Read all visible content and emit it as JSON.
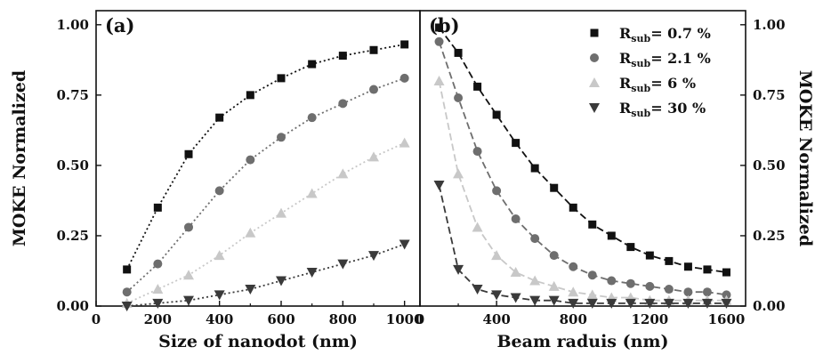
{
  "chart_data": [
    {
      "type": "line",
      "panel_label": "(a)",
      "xlabel": "Size of nanodot (nm)",
      "ylabel": "MOKE Normalized",
      "xlim": [
        0,
        1050
      ],
      "ylim": [
        0,
        1.05
      ],
      "xticks": [
        0,
        200,
        400,
        600,
        800,
        1000
      ],
      "yticks": [
        0.0,
        0.25,
        0.5,
        0.75,
        1.0
      ],
      "ytick_labels": [
        "0.00",
        "0.25",
        "0.50",
        "0.75",
        "1.00"
      ],
      "ytick_side": "left",
      "line_style": "dotted",
      "x": [
        100,
        200,
        300,
        400,
        500,
        600,
        700,
        800,
        900,
        1000
      ],
      "series": [
        {
          "marker": "square",
          "color": "#111111",
          "values": [
            0.13,
            0.35,
            0.54,
            0.67,
            0.75,
            0.81,
            0.86,
            0.89,
            0.91,
            0.93
          ]
        },
        {
          "marker": "circle",
          "color": "#6e6e6e",
          "values": [
            0.05,
            0.15,
            0.28,
            0.41,
            0.52,
            0.6,
            0.67,
            0.72,
            0.77,
            0.81
          ]
        },
        {
          "marker": "triangle-up",
          "color": "#c8c8c8",
          "values": [
            0.01,
            0.06,
            0.11,
            0.18,
            0.26,
            0.33,
            0.4,
            0.47,
            0.53,
            0.58
          ]
        },
        {
          "marker": "triangle-down",
          "color": "#3a3a3a",
          "values": [
            0.0,
            0.01,
            0.02,
            0.04,
            0.06,
            0.09,
            0.12,
            0.15,
            0.18,
            0.22
          ]
        }
      ]
    },
    {
      "type": "line",
      "panel_label": "(b)",
      "xlabel": "Beam raduis (nm)",
      "ylabel": "MOKE Normalized",
      "xlim": [
        0,
        1700
      ],
      "ylim": [
        0,
        1.05
      ],
      "xticks": [
        0,
        400,
        800,
        1200,
        1600
      ],
      "yticks": [
        0.0,
        0.25,
        0.5,
        0.75,
        1.0
      ],
      "ytick_labels": [
        "0.00",
        "0.25",
        "0.50",
        "0.75",
        "1.00"
      ],
      "ytick_side": "right",
      "line_style": "dashed",
      "x": [
        100,
        200,
        300,
        400,
        500,
        600,
        700,
        800,
        900,
        1000,
        1100,
        1200,
        1300,
        1400,
        1500,
        1600
      ],
      "legend_position": "top-right",
      "series": [
        {
          "name_main": "R",
          "name_sub": "sub",
          "name_rest": "= 0.7 %",
          "marker": "square",
          "color": "#111111",
          "values": [
            0.99,
            0.9,
            0.78,
            0.68,
            0.58,
            0.49,
            0.42,
            0.35,
            0.29,
            0.25,
            0.21,
            0.18,
            0.16,
            0.14,
            0.13,
            0.12
          ]
        },
        {
          "name_main": "R",
          "name_sub": "sub",
          "name_rest": "= 2.1 %",
          "marker": "circle",
          "color": "#6e6e6e",
          "values": [
            0.94,
            0.74,
            0.55,
            0.41,
            0.31,
            0.24,
            0.18,
            0.14,
            0.11,
            0.09,
            0.08,
            0.07,
            0.06,
            0.05,
            0.05,
            0.04
          ]
        },
        {
          "name_main": "R",
          "name_sub": "sub",
          "name_rest": "= 6 %",
          "marker": "triangle-up",
          "color": "#c8c8c8",
          "values": [
            0.8,
            0.47,
            0.28,
            0.18,
            0.12,
            0.09,
            0.07,
            0.05,
            0.04,
            0.03,
            0.03,
            0.02,
            0.02,
            0.02,
            0.02,
            0.02
          ]
        },
        {
          "name_main": "R",
          "name_sub": "sub",
          "name_rest": "= 30 %",
          "marker": "triangle-down",
          "color": "#3a3a3a",
          "values": [
            0.43,
            0.13,
            0.06,
            0.04,
            0.03,
            0.02,
            0.02,
            0.01,
            0.01,
            0.01,
            0.01,
            0.01,
            0.01,
            0.01,
            0.01,
            0.01
          ]
        }
      ]
    }
  ]
}
